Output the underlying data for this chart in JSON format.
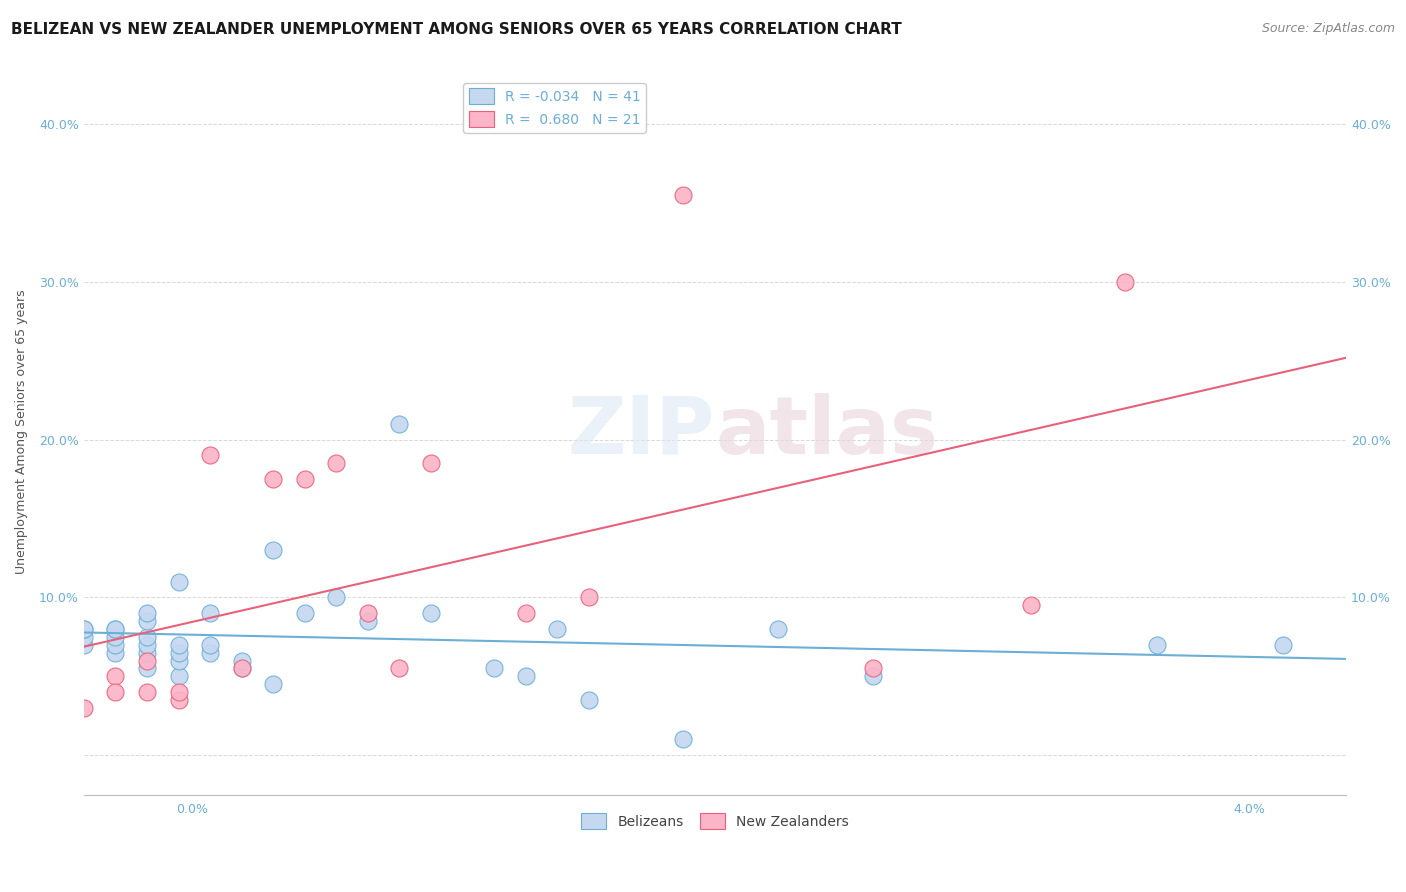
{
  "title": "BELIZEAN VS NEW ZEALANDER UNEMPLOYMENT AMONG SENIORS OVER 65 YEARS CORRELATION CHART",
  "source": "Source: ZipAtlas.com",
  "ylabel": "Unemployment Among Seniors over 65 years",
  "ytick_vals": [
    0.0,
    0.1,
    0.2,
    0.3,
    0.4
  ],
  "ytick_labels": [
    "",
    "10.0%",
    "20.0%",
    "30.0%",
    "40.0%"
  ],
  "xlim": [
    0.0,
    0.04
  ],
  "ylim": [
    -0.025,
    0.435
  ],
  "watermark_line1": "ZIP",
  "watermark_line2": "atlas",
  "belizeans_x": [
    0.0,
    0.0,
    0.0,
    0.0,
    0.001,
    0.001,
    0.001,
    0.001,
    0.001,
    0.002,
    0.002,
    0.002,
    0.002,
    0.002,
    0.002,
    0.003,
    0.003,
    0.003,
    0.003,
    0.003,
    0.004,
    0.004,
    0.004,
    0.005,
    0.005,
    0.006,
    0.006,
    0.007,
    0.008,
    0.009,
    0.01,
    0.011,
    0.013,
    0.014,
    0.015,
    0.016,
    0.019,
    0.022,
    0.025,
    0.034,
    0.038
  ],
  "belizeans_y": [
    0.07,
    0.075,
    0.08,
    0.08,
    0.065,
    0.07,
    0.075,
    0.08,
    0.08,
    0.055,
    0.065,
    0.07,
    0.075,
    0.085,
    0.09,
    0.05,
    0.06,
    0.065,
    0.07,
    0.11,
    0.065,
    0.07,
    0.09,
    0.055,
    0.06,
    0.045,
    0.13,
    0.09,
    0.1,
    0.085,
    0.21,
    0.09,
    0.055,
    0.05,
    0.08,
    0.035,
    0.01,
    0.08,
    0.05,
    0.07,
    0.07
  ],
  "new_zealanders_x": [
    0.0,
    0.001,
    0.001,
    0.002,
    0.002,
    0.003,
    0.003,
    0.004,
    0.005,
    0.006,
    0.007,
    0.008,
    0.009,
    0.01,
    0.011,
    0.014,
    0.016,
    0.019,
    0.025,
    0.03,
    0.033
  ],
  "new_zealanders_y": [
    0.03,
    0.05,
    0.04,
    0.06,
    0.04,
    0.035,
    0.04,
    0.19,
    0.055,
    0.175,
    0.175,
    0.185,
    0.09,
    0.055,
    0.185,
    0.09,
    0.1,
    0.355,
    0.055,
    0.095,
    0.3
  ],
  "belizean_fill_color": "#c5d8f0",
  "belizean_edge_color": "#6baed6",
  "nz_fill_color": "#fbb4c8",
  "nz_edge_color": "#e8617a",
  "belizean_line_color": "#6baed6",
  "nz_line_color": "#e8617a",
  "tick_color": "#6baed6",
  "grid_color": "#d9d9d9",
  "background_color": "#ffffff",
  "title_fontsize": 11,
  "source_fontsize": 9,
  "axis_label_fontsize": 9,
  "tick_fontsize": 9,
  "legend_fontsize": 10,
  "r_belizean": "-0.034",
  "n_belizean": "41",
  "r_nz": "0.680",
  "n_nz": "21"
}
